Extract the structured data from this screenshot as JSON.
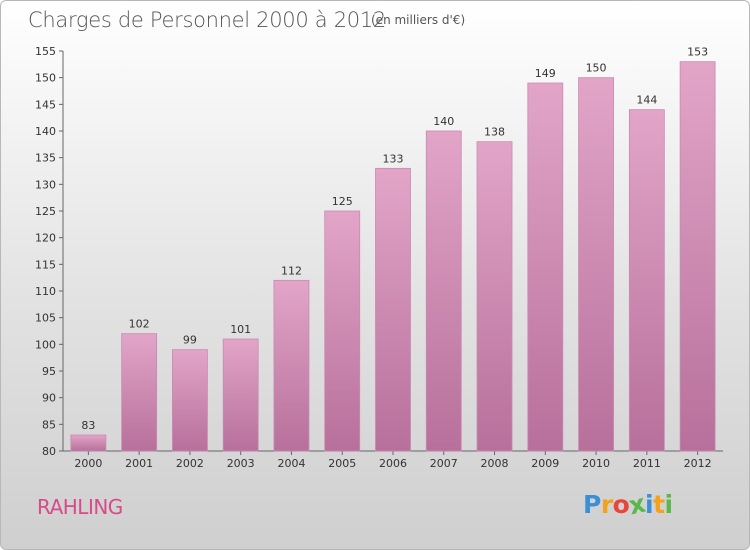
{
  "title": "Charges de Personnel 2000 à 2012",
  "subtitle": "(en milliers d'€)",
  "place": "RAHLING",
  "logo": {
    "letters": [
      "P",
      "r",
      "o",
      "x",
      "i",
      "t",
      "i"
    ],
    "colors": [
      "#3a8fd8",
      "#f2a31b",
      "#e8453c",
      "#5ab84a",
      "#3a8fd8",
      "#f2a31b",
      "#5ab84a"
    ]
  },
  "colors": {
    "bar": "#d98fb6",
    "bar_dark": "#b96a98",
    "text": "#333333",
    "place": "#d94a8a"
  },
  "chart_data": {
    "type": "bar",
    "categories": [
      "2000",
      "2001",
      "2002",
      "2003",
      "2004",
      "2005",
      "2006",
      "2007",
      "2008",
      "2009",
      "2010",
      "2011",
      "2012"
    ],
    "values": [
      83,
      102,
      99,
      101,
      112,
      125,
      133,
      140,
      138,
      149,
      150,
      144,
      153
    ],
    "value_labels": [
      "83",
      "102",
      "99",
      "101",
      "112",
      "125",
      "133",
      "140",
      "138",
      "149",
      "150",
      "144",
      "153"
    ],
    "y_ticks": [
      "80",
      "85",
      "90",
      "95",
      "100",
      "105",
      "110",
      "115",
      "120",
      "125",
      "130",
      "135",
      "140",
      "145",
      "150",
      "155"
    ],
    "ylim": [
      80,
      155
    ],
    "grid": false,
    "legend": "none"
  }
}
